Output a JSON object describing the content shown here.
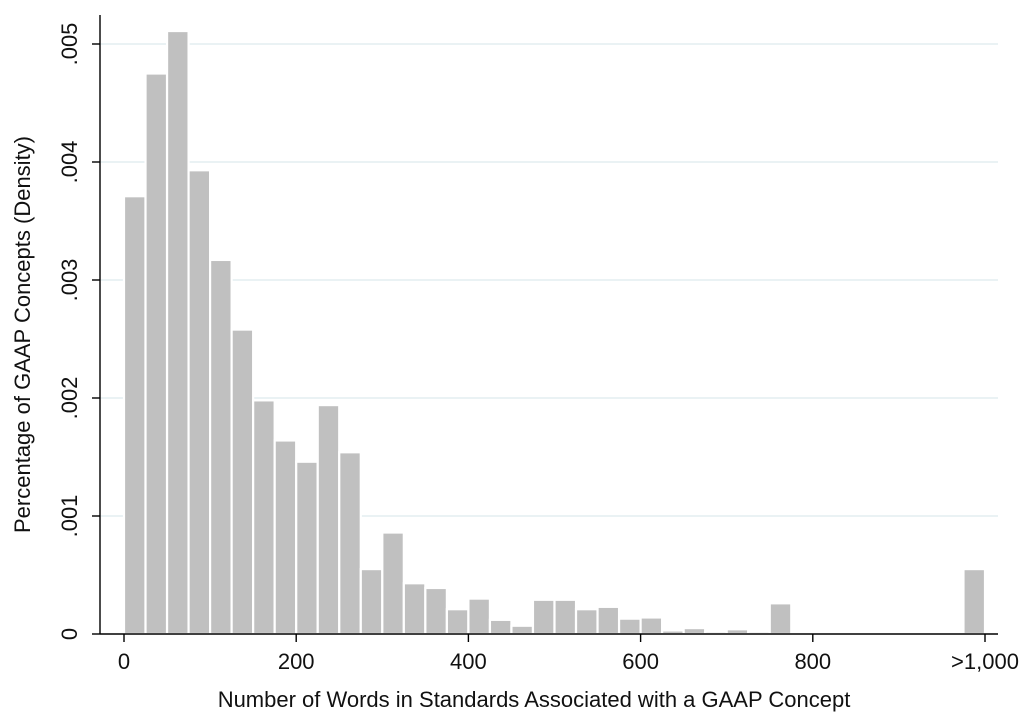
{
  "chart_data": {
    "type": "bar",
    "title": "",
    "xlabel": "Number of Words in Standards Associated with a GAAP Concept",
    "ylabel": "Percentage of GAAP Concepts (Density)",
    "xlim": [
      0,
      1000
    ],
    "ylim": [
      0,
      0.005
    ],
    "bin_width": 25,
    "x_ticks": [
      {
        "value": 0,
        "label": "0"
      },
      {
        "value": 200,
        "label": "200"
      },
      {
        "value": 400,
        "label": "400"
      },
      {
        "value": 600,
        "label": "600"
      },
      {
        "value": 800,
        "label": "800"
      },
      {
        "value": 1000,
        "label": ">1,000"
      }
    ],
    "y_ticks": [
      {
        "value": 0,
        "label": "0"
      },
      {
        "value": 0.001,
        "label": ".001"
      },
      {
        "value": 0.002,
        "label": ".002"
      },
      {
        "value": 0.003,
        "label": ".003"
      },
      {
        "value": 0.004,
        "label": ".004"
      },
      {
        "value": 0.005,
        "label": ".005"
      }
    ],
    "grid": "horizontal",
    "colors": {
      "bar_fill": "#c0c0c0",
      "bar_edge": "#ffffff",
      "grid": "#e3eef1",
      "axis": "#000000"
    },
    "bins": [
      {
        "x_start": 0,
        "value": 0.00371
      },
      {
        "x_start": 25,
        "value": 0.00475
      },
      {
        "x_start": 50,
        "value": 0.00511
      },
      {
        "x_start": 75,
        "value": 0.00393
      },
      {
        "x_start": 100,
        "value": 0.00317
      },
      {
        "x_start": 125,
        "value": 0.00258
      },
      {
        "x_start": 150,
        "value": 0.00198
      },
      {
        "x_start": 175,
        "value": 0.00164
      },
      {
        "x_start": 200,
        "value": 0.00146
      },
      {
        "x_start": 225,
        "value": 0.00194
      },
      {
        "x_start": 250,
        "value": 0.00154
      },
      {
        "x_start": 275,
        "value": 0.00055
      },
      {
        "x_start": 300,
        "value": 0.00086
      },
      {
        "x_start": 325,
        "value": 0.00043
      },
      {
        "x_start": 350,
        "value": 0.00039
      },
      {
        "x_start": 375,
        "value": 0.00021
      },
      {
        "x_start": 400,
        "value": 0.0003
      },
      {
        "x_start": 425,
        "value": 0.00012
      },
      {
        "x_start": 450,
        "value": 7e-05
      },
      {
        "x_start": 475,
        "value": 0.00029
      },
      {
        "x_start": 500,
        "value": 0.00029
      },
      {
        "x_start": 525,
        "value": 0.00021
      },
      {
        "x_start": 550,
        "value": 0.00023
      },
      {
        "x_start": 575,
        "value": 0.00013
      },
      {
        "x_start": 600,
        "value": 0.00014
      },
      {
        "x_start": 625,
        "value": 3e-05
      },
      {
        "x_start": 650,
        "value": 5e-05
      },
      {
        "x_start": 675,
        "value": 2e-05
      },
      {
        "x_start": 700,
        "value": 4e-05
      },
      {
        "x_start": 725,
        "value": 2e-05
      },
      {
        "x_start": 750,
        "value": 0.00026
      },
      {
        "x_start": 975,
        "value": 0.00055
      }
    ]
  }
}
